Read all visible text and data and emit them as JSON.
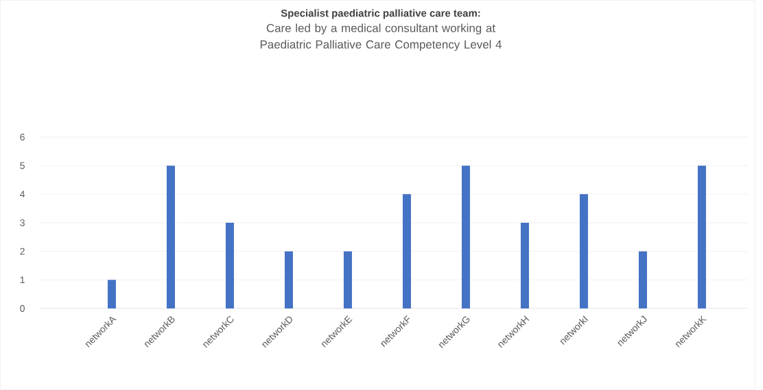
{
  "chart_data": {
    "type": "bar",
    "title": "Specialist paediatric palliative care team:",
    "subtitle": "Care led by a medical consultant working at Paediatric Palliative Care Competency Level 4",
    "categories": [
      "networkA",
      "networkB",
      "networkC",
      "networkD",
      "networkE",
      "networkF",
      "networkG",
      "networkH",
      "networkI",
      "networkJ",
      "networkK"
    ],
    "values": [
      1,
      5,
      3,
      2,
      2,
      4,
      5,
      3,
      4,
      2,
      5
    ],
    "color": "#4472c4",
    "ylim": [
      0,
      6
    ],
    "yticks": [
      0,
      1,
      2,
      3,
      4,
      5,
      6
    ],
    "grid": "y"
  }
}
